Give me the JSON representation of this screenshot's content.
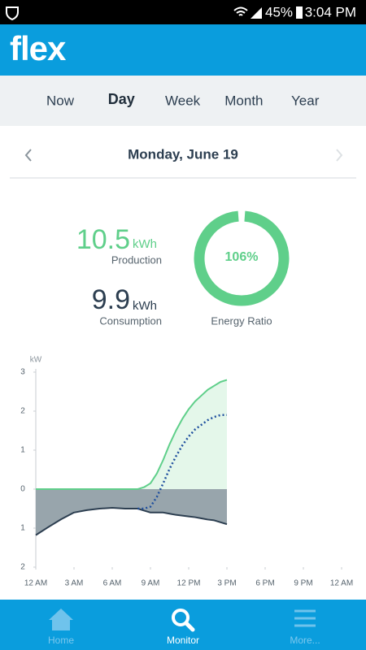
{
  "status_bar": {
    "battery": "45%",
    "time": "3:04 PM"
  },
  "header": {
    "logo": "flex"
  },
  "tabs": {
    "items": [
      "Now",
      "Day",
      "Week",
      "Month",
      "Year"
    ],
    "active": 1
  },
  "date": "Monday, June 19",
  "stats": {
    "production": {
      "value": 10.5,
      "unit": "kWh",
      "label": "Production"
    },
    "consumption": {
      "value": 9.9,
      "unit": "kWh",
      "label": "Consumption"
    },
    "ratio": {
      "value": 106,
      "label": "106%",
      "caption": "Energy Ratio"
    }
  },
  "chart_data": {
    "type": "area",
    "y_label": "kW",
    "xlim": [
      0,
      24
    ],
    "xticks": [
      {
        "value": 0,
        "label": "12 AM"
      },
      {
        "value": 3,
        "label": "3 AM"
      },
      {
        "value": 6,
        "label": "6 AM"
      },
      {
        "value": 9,
        "label": "9 AM"
      },
      {
        "value": 12,
        "label": "12 PM"
      },
      {
        "value": 15,
        "label": "3 PM"
      },
      {
        "value": 18,
        "label": "6 PM"
      },
      {
        "value": 21,
        "label": "9 PM"
      },
      {
        "value": 24,
        "label": "12 AM"
      }
    ],
    "ylim": [
      -2,
      3
    ],
    "yticks": [
      3,
      2,
      1,
      0,
      {
        "value": -1,
        "label": "1"
      },
      {
        "value": -2,
        "label": "2"
      }
    ],
    "x": [
      0,
      1,
      2,
      3,
      4,
      5,
      6,
      7,
      8,
      8.5,
      9,
      9.5,
      10,
      10.5,
      11,
      11.5,
      12,
      12.5,
      13,
      13.5,
      14,
      14.5,
      15
    ],
    "series": [
      {
        "name": "Production",
        "color": "#5fcf8a",
        "fill": "#e4f7ea",
        "style": "solid",
        "values": [
          0,
          0,
          0,
          0,
          0,
          0,
          0,
          0,
          0,
          0.05,
          0.15,
          0.4,
          0.75,
          1.15,
          1.5,
          1.8,
          2.05,
          2.25,
          2.4,
          2.55,
          2.65,
          2.75,
          2.8
        ]
      },
      {
        "name": "Consumption",
        "color": "#2c3e50",
        "fill": "#98a5ac",
        "style": "solid",
        "values": [
          -1.18,
          -0.97,
          -0.77,
          -0.6,
          -0.54,
          -0.5,
          -0.48,
          -0.5,
          -0.5,
          -0.55,
          -0.6,
          -0.6,
          -0.6,
          -0.63,
          -0.66,
          -0.68,
          -0.7,
          -0.72,
          -0.75,
          -0.78,
          -0.8,
          -0.85,
          -0.9
        ]
      },
      {
        "color": "#1f4f9e",
        "style": "dotted",
        "values": [
          null,
          null,
          null,
          null,
          null,
          null,
          null,
          null,
          -0.5,
          -0.5,
          -0.45,
          -0.2,
          0.15,
          0.52,
          0.84,
          1.12,
          1.35,
          1.53,
          1.65,
          1.77,
          1.85,
          1.9,
          1.9
        ]
      }
    ]
  },
  "bottom_nav": {
    "items": [
      "Home",
      "Monitor",
      "More..."
    ],
    "active": 1
  }
}
